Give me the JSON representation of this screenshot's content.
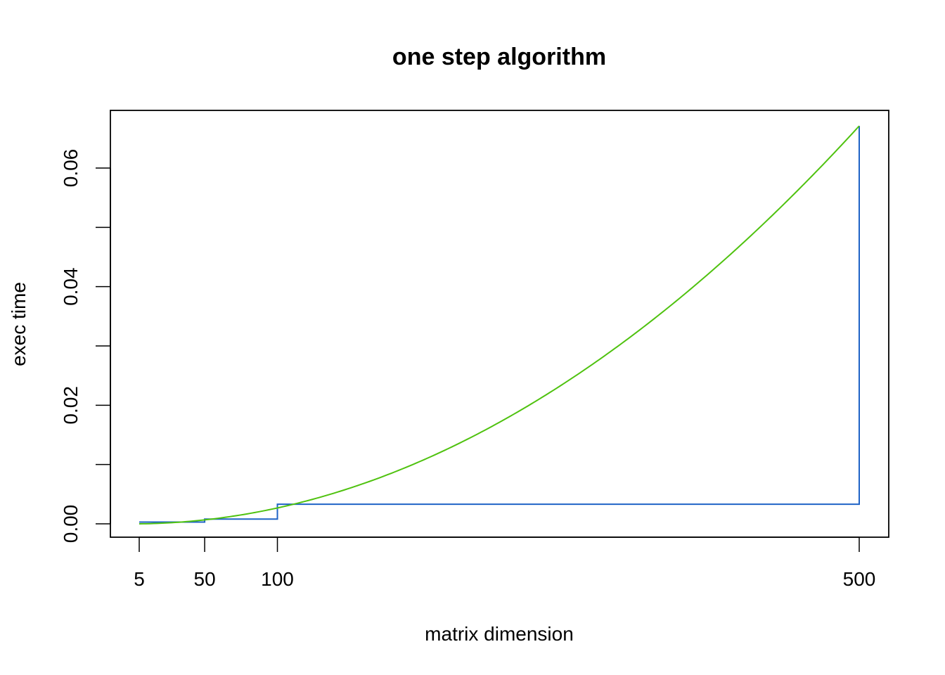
{
  "chart_data": {
    "type": "line",
    "title": "one step algorithm",
    "xlabel": "matrix dimension",
    "ylabel": "exec time",
    "xlim": [
      5,
      500
    ],
    "ylim": [
      0,
      0.06
    ],
    "x_ticks": [
      5,
      50,
      100,
      500
    ],
    "y_ticks": [
      0.0,
      0.01,
      0.02,
      0.03,
      0.04,
      0.05,
      0.06
    ],
    "y_tick_labels": [
      "0.00",
      "",
      "0.02",
      "",
      "0.04",
      "",
      "0.06"
    ],
    "grid": false,
    "legend": "none",
    "series": [
      {
        "style": "step",
        "color": "#1f63c6",
        "points": [
          [
            5,
            0.0003
          ],
          [
            50,
            0.0008
          ],
          [
            100,
            0.0033
          ],
          [
            500,
            0.0033
          ],
          [
            500,
            0.0671
          ]
        ]
      },
      {
        "style": "smooth",
        "color": "#4fc20f",
        "model": "quadratic",
        "x": [
          5,
          50,
          100,
          150,
          200,
          250,
          300,
          350,
          400,
          450,
          500
        ],
        "values": [
          0.0,
          0.0006,
          0.0027,
          0.006,
          0.0107,
          0.0168,
          0.0242,
          0.0329,
          0.043,
          0.0544,
          0.0671
        ]
      }
    ]
  }
}
